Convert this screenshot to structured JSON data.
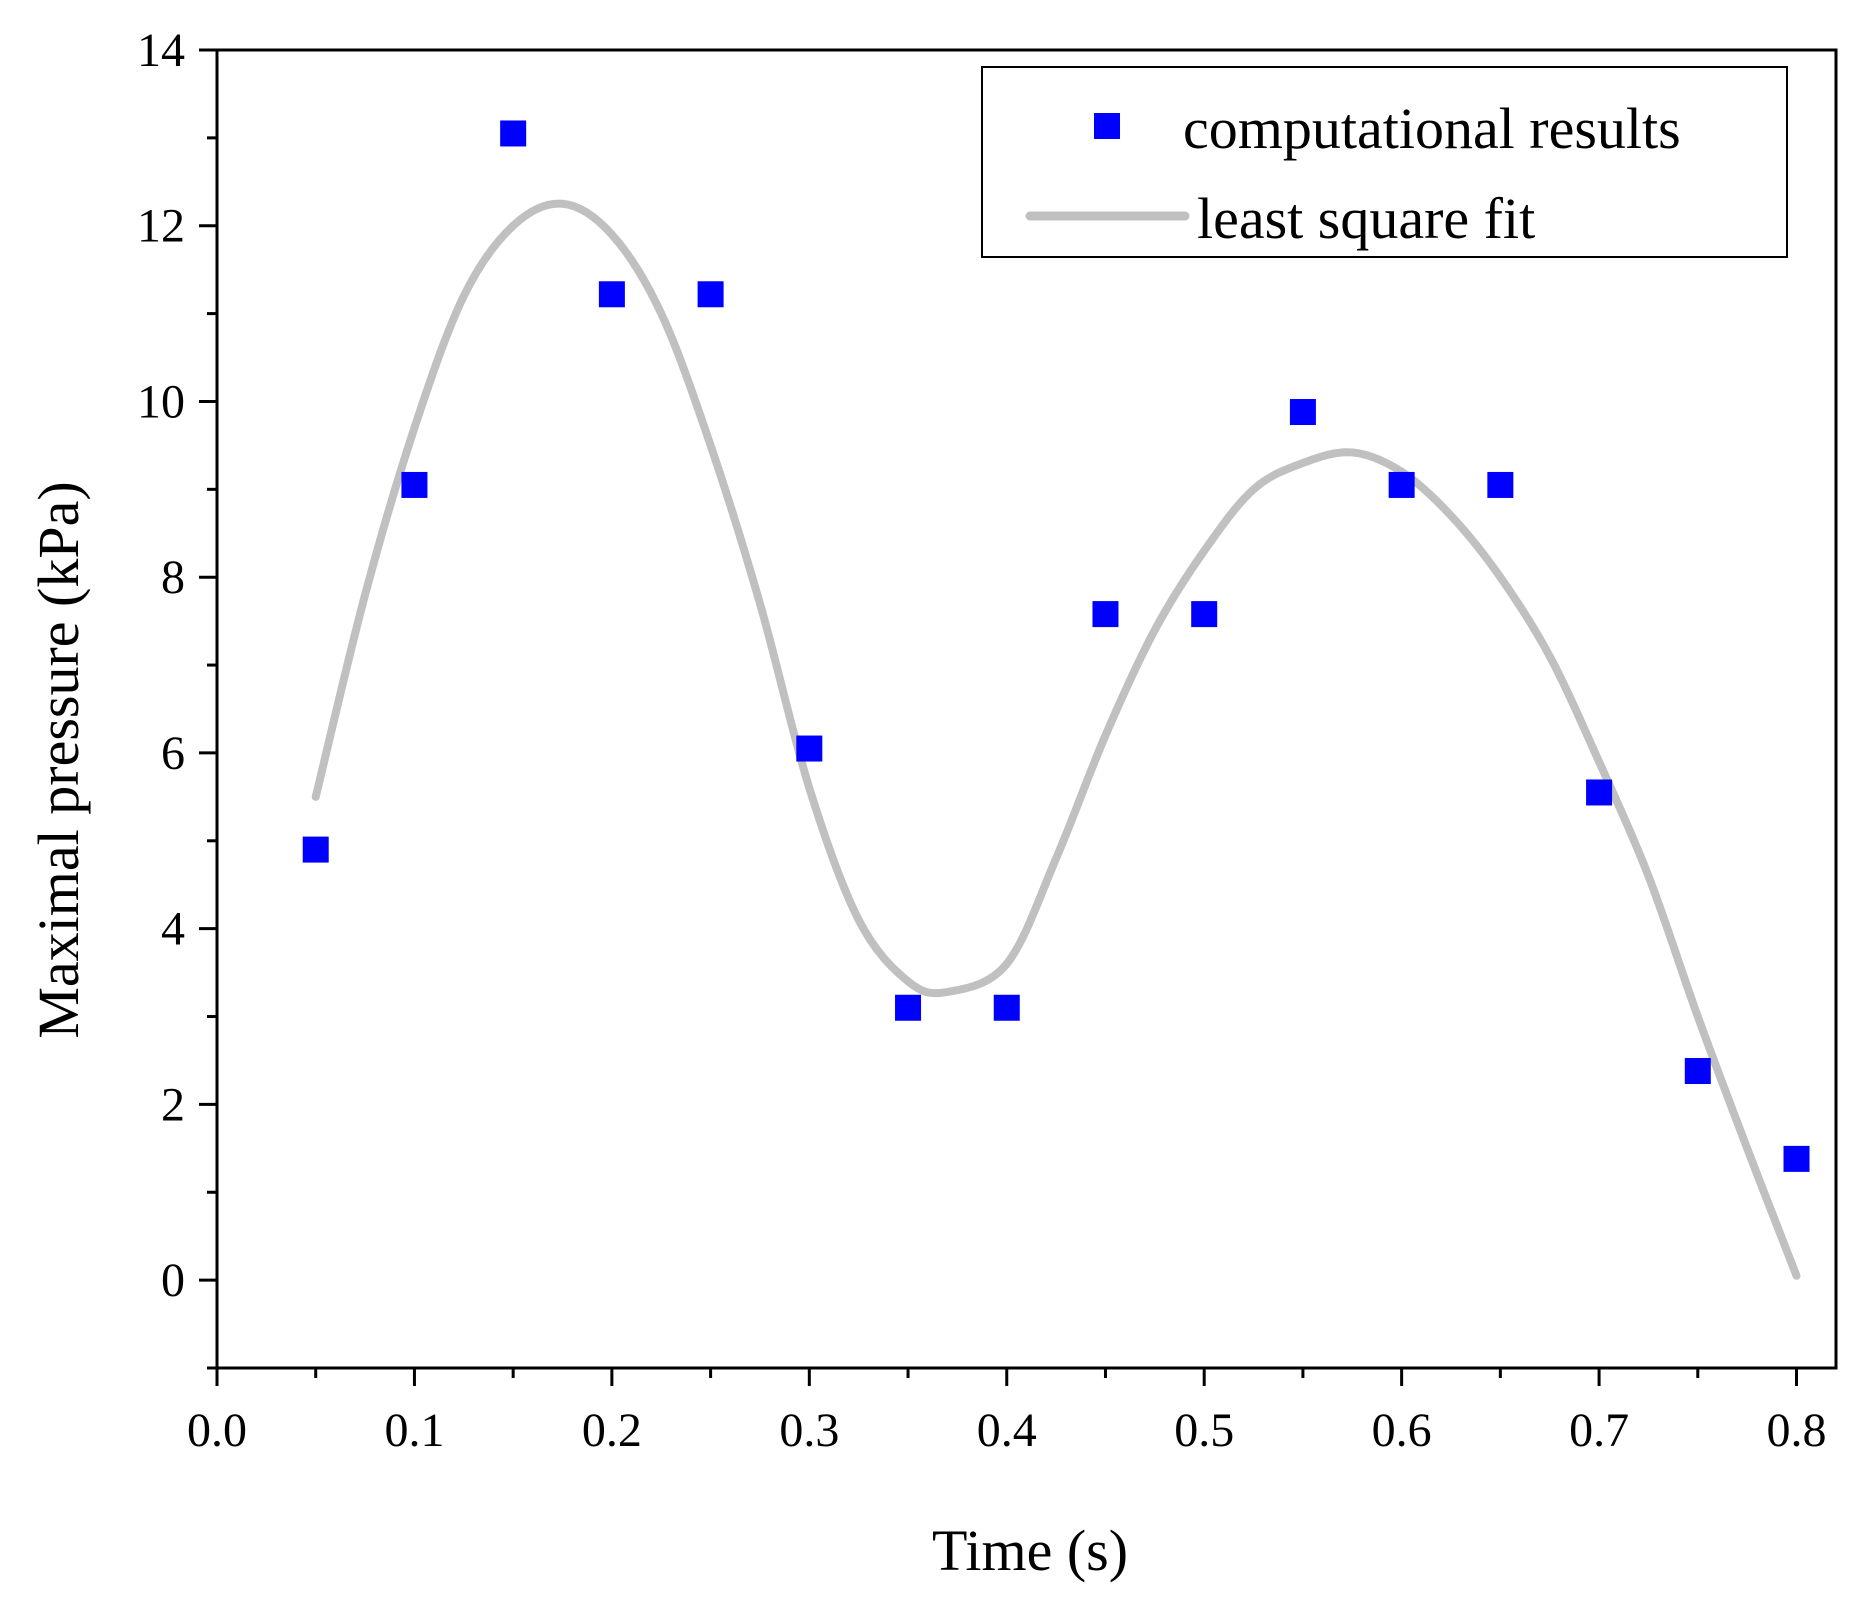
{
  "chart_data": {
    "type": "scatter",
    "title": "",
    "xlabel": "Time (s)",
    "ylabel": "Maximal pressure (kPa)",
    "xlim": [
      0.0,
      0.82
    ],
    "ylim": [
      -1.0,
      14.0
    ],
    "x_ticks": [
      "0.0",
      "0.1",
      "0.2",
      "0.3",
      "0.4",
      "0.5",
      "0.6",
      "0.7",
      "0.8"
    ],
    "y_ticks": [
      "0",
      "2",
      "4",
      "6",
      "8",
      "10",
      "12",
      "14"
    ],
    "x_tick_values": [
      0.0,
      0.1,
      0.2,
      0.3,
      0.4,
      0.5,
      0.6,
      0.7,
      0.8
    ],
    "y_tick_values": [
      0,
      2,
      4,
      6,
      8,
      10,
      12,
      14
    ],
    "grid": false,
    "legend_position": "top-right",
    "colors": {
      "points": "#0000ff",
      "fit": "#c0c0c0",
      "axes": "#000000"
    },
    "series": [
      {
        "name": "computational results",
        "kind": "scatter",
        "marker": "square",
        "x": [
          0.05,
          0.1,
          0.15,
          0.2,
          0.25,
          0.3,
          0.35,
          0.4,
          0.45,
          0.5,
          0.55,
          0.6,
          0.65,
          0.7,
          0.75,
          0.8
        ],
        "y": [
          4.9,
          9.05,
          13.05,
          11.22,
          11.22,
          6.05,
          3.1,
          3.1,
          7.58,
          7.58,
          9.88,
          9.05,
          9.05,
          5.55,
          2.38,
          1.38
        ]
      },
      {
        "name": "least square fit",
        "kind": "line",
        "x": [
          0.05,
          0.075,
          0.1,
          0.125,
          0.15,
          0.175,
          0.2,
          0.225,
          0.25,
          0.275,
          0.3,
          0.325,
          0.35,
          0.37,
          0.4,
          0.425,
          0.45,
          0.475,
          0.5,
          0.525,
          0.55,
          0.575,
          0.6,
          0.625,
          0.65,
          0.675,
          0.7,
          0.725,
          0.75,
          0.775,
          0.8
        ],
        "y": [
          5.5,
          7.8,
          9.7,
          11.2,
          12.0,
          12.25,
          11.9,
          11.0,
          9.5,
          7.7,
          5.6,
          4.1,
          3.4,
          3.28,
          3.6,
          4.8,
          6.2,
          7.4,
          8.3,
          9.0,
          9.3,
          9.42,
          9.2,
          8.7,
          8.0,
          7.1,
          5.9,
          4.6,
          3.0,
          1.5,
          0.05
        ]
      }
    ]
  }
}
